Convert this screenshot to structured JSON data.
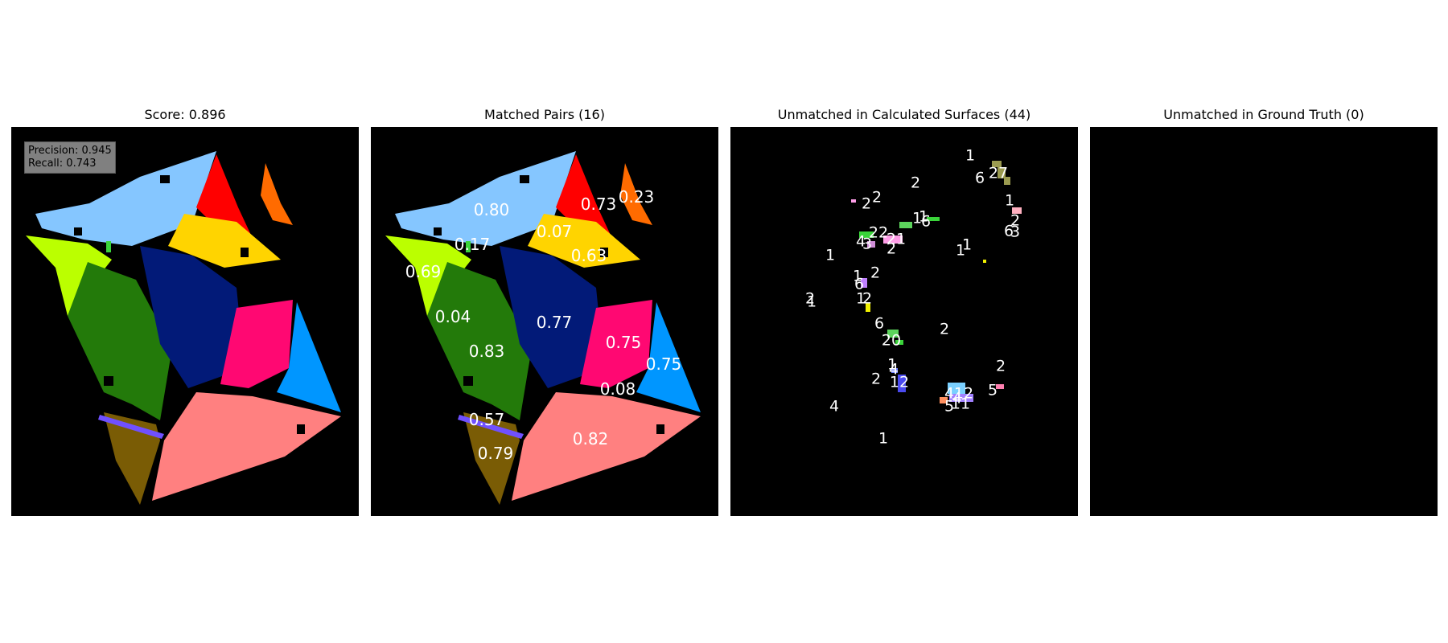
{
  "panels": [
    {
      "title": "Score: 0.896"
    },
    {
      "title": "Matched Pairs (16)"
    },
    {
      "title": "Unmatched in Calculated Surfaces (44)"
    },
    {
      "title": "Unmatched in Ground Truth (0)"
    }
  ],
  "metrics": {
    "precision": "Precision: 0.945",
    "recall": "Recall: 0.743"
  },
  "colors": {
    "light_blue": "#85c6ff",
    "red": "#ff0000",
    "orange": "#ff6b00",
    "yellow": "#ffd400",
    "lime": "#bbff00",
    "green": "#237a0a",
    "navy": "#021a78",
    "pink": "#ff0872",
    "sky": "#0096ff",
    "salmon": "#ff8080",
    "olive": "#7a5c05",
    "purple": "#7050ff"
  },
  "matched_scores": [
    "0.80",
    "0.73",
    "0.23",
    "0.07",
    "0.17",
    "0.63",
    "0.69",
    "0.04",
    "0.77",
    "0.83",
    "0.75",
    "0.75",
    "0.08",
    "0.57",
    "0.82",
    "0.79"
  ],
  "unmatched_counts": [
    "1",
    "27",
    "6",
    "2",
    "2",
    "2",
    "1",
    "1",
    "1",
    "6",
    "2",
    "6",
    "3",
    "22",
    "21",
    "2",
    "1",
    "4",
    "3",
    "1",
    "1",
    "2",
    "1",
    "6",
    "1",
    "2",
    "2",
    "1",
    "6",
    "2",
    "20",
    "2",
    "1",
    "4",
    "2",
    "12",
    "4",
    "4",
    "5",
    "12",
    "5",
    "11",
    "4",
    "1"
  ]
}
